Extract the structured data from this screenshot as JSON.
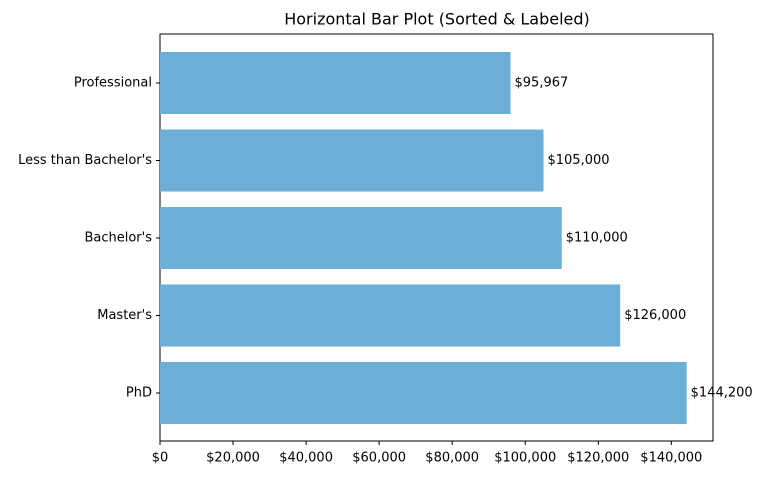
{
  "chart_data": {
    "type": "barh",
    "title": "Horizontal Bar Plot (Sorted & Labeled)",
    "categories": [
      "Professional",
      "Less than Bachelor's",
      "Bachelor's",
      "Master's",
      "PhD"
    ],
    "values": [
      95967,
      105000,
      110000,
      126000,
      144200
    ],
    "value_labels": [
      "$95,967",
      "$105,000",
      "$110,000",
      "$126,000",
      "$144,200"
    ],
    "color": "#6baed6",
    "xlim": [
      0,
      151410
    ],
    "xticks": [
      {
        "value": 0,
        "label": "$0"
      },
      {
        "value": 20000,
        "label": "$20,000"
      },
      {
        "value": 40000,
        "label": "$40,000"
      },
      {
        "value": 60000,
        "label": "$60,000"
      },
      {
        "value": 80000,
        "label": "$80,000"
      },
      {
        "value": 100000,
        "label": "$100,000"
      },
      {
        "value": 120000,
        "label": "$120,000"
      },
      {
        "value": 140000,
        "label": "$140,000"
      }
    ]
  }
}
